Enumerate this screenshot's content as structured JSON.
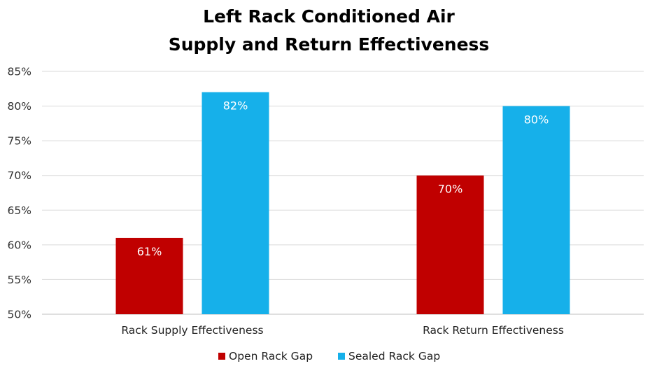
{
  "chart_data": {
    "type": "bar",
    "title": [
      "Left Rack Conditioned Air",
      "Supply and Return Effectiveness"
    ],
    "categories": [
      "Rack Supply Effectiveness",
      "Rack Return Effectiveness"
    ],
    "series": [
      {
        "name": "Open Rack Gap",
        "color": "#c00000",
        "values": [
          61,
          70
        ],
        "labels": [
          "61%",
          "70%"
        ]
      },
      {
        "name": "Sealed Rack Gap",
        "color": "#16b0ea",
        "values": [
          82,
          80
        ],
        "labels": [
          "82%",
          "80%"
        ]
      }
    ],
    "y_ticks": [
      50,
      55,
      60,
      65,
      70,
      75,
      80,
      85
    ],
    "y_tick_labels": [
      "50%",
      "55%",
      "60%",
      "65%",
      "70%",
      "75%",
      "80%",
      "85%"
    ],
    "ylim": [
      50,
      85
    ],
    "grid": true,
    "legend_position": "bottom"
  }
}
